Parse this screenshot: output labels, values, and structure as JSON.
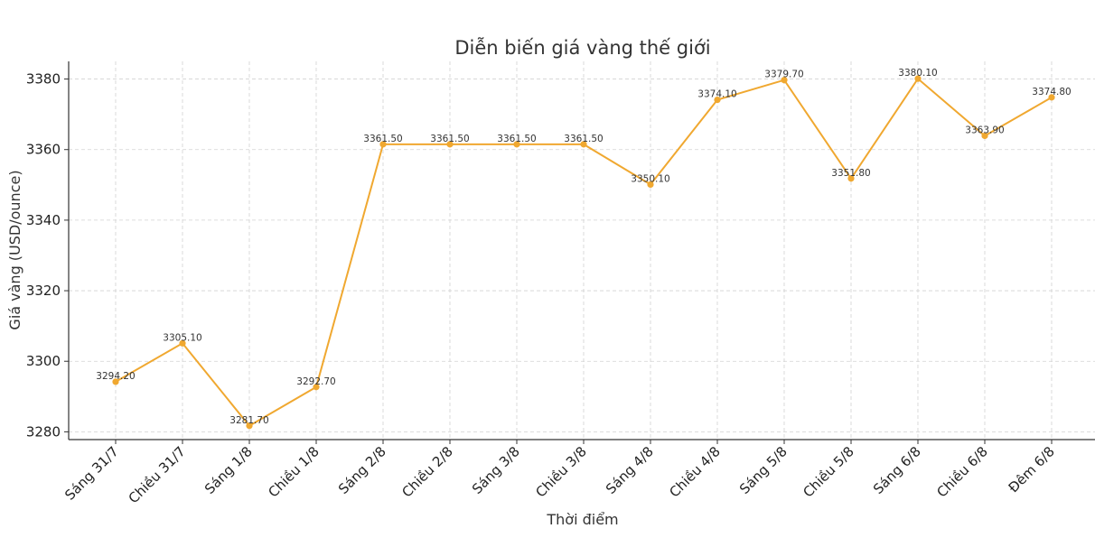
{
  "chart_data": {
    "type": "line",
    "title": "Diễn biến giá vàng thế giới",
    "xlabel": "Thời điểm",
    "ylabel": "Giá vàng (USD/ounce)",
    "categories": [
      "Sáng 31/7",
      "Chiều 31/7",
      "Sáng 1/8",
      "Chiều 1/8",
      "Sáng 2/8",
      "Chiều 2/8",
      "Sáng 3/8",
      "Chiều 3/8",
      "Sáng 4/8",
      "Chiều 4/8",
      "Sáng 5/8",
      "Chiều 5/8",
      "Sáng 6/8",
      "Chiều 6/8",
      "Đêm 6/8"
    ],
    "series": [
      {
        "values": [
          3294.2,
          3305.1,
          3281.7,
          3292.7,
          3361.5,
          3361.5,
          3361.5,
          3361.5,
          3350.1,
          3374.1,
          3379.7,
          3351.8,
          3380.1,
          3363.9,
          3374.8
        ],
        "labels": [
          "3294.20",
          "3305.10",
          "3281.70",
          "3292.70",
          "3361.50",
          "3361.50",
          "3361.50",
          "3361.50",
          "3350.10",
          "3374.10",
          "3379.70",
          "3351.80",
          "3380.10",
          "3363.90",
          "3374.80"
        ],
        "color": "#f0a830"
      }
    ],
    "yticks": [
      3280,
      3300,
      3320,
      3340,
      3360,
      3380
    ],
    "ylim": [
      3277.8,
      3385
    ],
    "grid": true,
    "legend": "none"
  }
}
